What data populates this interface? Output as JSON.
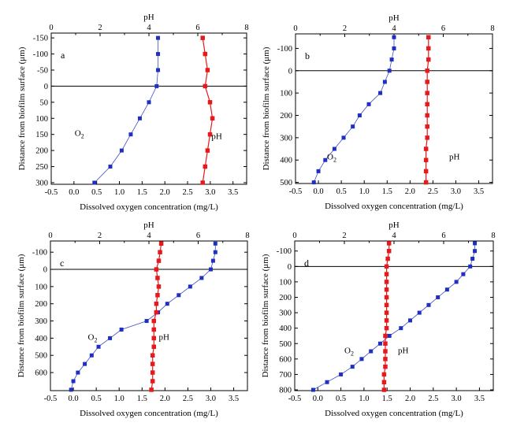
{
  "chart_data": [
    {
      "type": "line",
      "panel": "a",
      "top_axis": {
        "label": "pH",
        "range": [
          0,
          8
        ],
        "ticks": [
          0,
          2,
          4,
          6,
          8
        ],
        "minor_ticks": [
          1,
          3,
          5,
          7
        ]
      },
      "bottom_axis": {
        "label": "Dissolved oxygen concentration (mg/L)",
        "range": [
          -0.5,
          3.8
        ],
        "ticks": [
          -0.5,
          0,
          0.5,
          1,
          1.5,
          2,
          2.5,
          3,
          3.5
        ],
        "tick_labels": [
          "-0.5",
          "0.0",
          "0.5",
          "1.0",
          "1.5",
          "2.0",
          "2.5",
          "3.0",
          "3.5"
        ]
      },
      "y_axis": {
        "label": "Distance from biofilm surface (μm)",
        "range": [
          -165,
          305
        ],
        "ticks": [
          -150,
          -100,
          -50,
          0,
          50,
          100,
          150,
          200,
          250,
          300
        ],
        "reversed": true
      },
      "surface_line": 0,
      "series": [
        {
          "name": "O2",
          "label_text": "O",
          "label_sub": "2",
          "axis": "bottom",
          "color": "#1f2fbf",
          "y": [
            -150,
            -100,
            -50,
            0,
            50,
            100,
            150,
            200,
            250,
            300
          ],
          "x": [
            1.85,
            1.85,
            1.85,
            1.82,
            1.65,
            1.45,
            1.25,
            1.05,
            0.8,
            0.45
          ]
        },
        {
          "name": "pH",
          "label_text": "pH",
          "axis": "top",
          "color": "#e41a1c",
          "y": [
            -150,
            -100,
            -50,
            0,
            50,
            100,
            150,
            200,
            250,
            300
          ],
          "x": [
            6.2,
            6.3,
            6.4,
            6.3,
            6.5,
            6.6,
            6.5,
            6.4,
            6.3,
            6.2
          ]
        }
      ]
    },
    {
      "type": "line",
      "panel": "b",
      "top_axis": {
        "label": "pH",
        "range": [
          0,
          8
        ],
        "ticks": [
          0,
          2,
          4,
          6,
          8
        ],
        "minor_ticks": [
          1,
          3,
          5,
          7
        ]
      },
      "bottom_axis": {
        "label": "Dissolved oxygen concentration (mg/L)",
        "range": [
          -0.5,
          3.8
        ],
        "ticks": [
          -0.5,
          0,
          0.5,
          1,
          1.5,
          2,
          2.5,
          3,
          3.5
        ],
        "tick_labels": [
          "-0.5",
          "0.0",
          "0.5",
          "1.0",
          "1.5",
          "2.0",
          "2.5",
          "3.0",
          "3.5"
        ]
      },
      "y_axis": {
        "label": "Distance from biofilm surface (μm)",
        "range": [
          -165,
          505
        ],
        "ticks": [
          -100,
          0,
          100,
          200,
          300,
          400,
          500
        ],
        "reversed": true
      },
      "surface_line": 0,
      "series": [
        {
          "name": "O2",
          "label_text": "O",
          "label_sub": "2",
          "axis": "bottom",
          "color": "#1f2fbf",
          "y": [
            -150,
            -100,
            -50,
            0,
            50,
            100,
            150,
            200,
            250,
            300,
            350,
            400,
            450,
            500
          ],
          "x": [
            1.65,
            1.65,
            1.6,
            1.55,
            1.45,
            1.35,
            1.1,
            0.9,
            0.75,
            0.55,
            0.35,
            0.15,
            0.0,
            -0.1
          ]
        },
        {
          "name": "pH",
          "label_text": "pH",
          "axis": "top",
          "color": "#e41a1c",
          "y": [
            -150,
            -100,
            -50,
            0,
            50,
            100,
            150,
            200,
            250,
            300,
            350,
            400,
            450,
            500
          ],
          "x": [
            5.4,
            5.4,
            5.4,
            5.35,
            5.35,
            5.35,
            5.35,
            5.35,
            5.35,
            5.35,
            5.3,
            5.3,
            5.3,
            5.3
          ]
        }
      ]
    },
    {
      "type": "line",
      "panel": "c",
      "top_axis": {
        "label": "pH",
        "range": [
          0,
          8
        ],
        "ticks": [
          0,
          2,
          4,
          6,
          8
        ],
        "minor_ticks": [
          1,
          3,
          5,
          7
        ]
      },
      "bottom_axis": {
        "label": "Dissolved oxygen concentration (mg/L)",
        "range": [
          -0.5,
          3.8
        ],
        "ticks": [
          -0.5,
          0,
          0.5,
          1,
          1.5,
          2,
          2.5,
          3,
          3.5
        ],
        "tick_labels": [
          "-0.5",
          "0.0",
          "0.5",
          "1.0",
          "1.5",
          "2.0",
          "2.5",
          "3.0",
          "3.5"
        ]
      },
      "y_axis": {
        "label": "Distance from biofilm surface (μm)",
        "range": [
          -165,
          705
        ],
        "ticks": [
          -100,
          0,
          100,
          200,
          300,
          400,
          500,
          600
        ],
        "reversed": true
      },
      "surface_line": 0,
      "series": [
        {
          "name": "O2",
          "label_text": "O",
          "label_sub": "2",
          "axis": "bottom",
          "color": "#1f2fbf",
          "y": [
            -150,
            -100,
            -50,
            0,
            50,
            100,
            150,
            200,
            250,
            300,
            350,
            400,
            450,
            500,
            550,
            600,
            650,
            700
          ],
          "x": [
            3.1,
            3.1,
            3.05,
            3.0,
            2.8,
            2.55,
            2.3,
            2.05,
            1.85,
            1.6,
            1.05,
            0.8,
            0.55,
            0.4,
            0.25,
            0.1,
            0.0,
            -0.05
          ]
        },
        {
          "name": "pH",
          "label_text": "pH",
          "axis": "top",
          "color": "#e41a1c",
          "y": [
            -150,
            -100,
            -50,
            0,
            50,
            100,
            150,
            200,
            250,
            300,
            350,
            400,
            450,
            500,
            550,
            600,
            650,
            700
          ],
          "x": [
            4.5,
            4.45,
            4.4,
            4.3,
            4.35,
            4.4,
            4.35,
            4.3,
            4.3,
            4.2,
            4.2,
            4.2,
            4.2,
            4.15,
            4.15,
            4.15,
            4.15,
            4.1
          ]
        }
      ]
    },
    {
      "type": "line",
      "panel": "d",
      "top_axis": {
        "label": "pH",
        "range": [
          0,
          8
        ],
        "ticks": [
          0,
          2,
          4,
          6,
          8
        ],
        "minor_ticks": [
          1,
          3,
          5,
          7
        ]
      },
      "bottom_axis": {
        "label": "Dissolved oxygen concentration (mg/L)",
        "range": [
          -0.5,
          3.8
        ],
        "ticks": [
          -0.5,
          0,
          0.5,
          1,
          1.5,
          2,
          2.5,
          3,
          3.5
        ],
        "tick_labels": [
          "-0.5",
          "0.0",
          "0.5",
          "1.0",
          "1.5",
          "2.0",
          "2.5",
          "3.0",
          "3.5"
        ]
      },
      "y_axis": {
        "label": "Distance from biofilm surface (μm)",
        "range": [
          -165,
          805
        ],
        "ticks": [
          -100,
          0,
          100,
          200,
          300,
          400,
          500,
          600,
          700,
          800
        ],
        "reversed": true
      },
      "surface_line": 0,
      "series": [
        {
          "name": "O2",
          "label_text": "O",
          "label_sub": "2",
          "axis": "bottom",
          "color": "#1f2fbf",
          "y": [
            -150,
            -100,
            -50,
            0,
            50,
            100,
            150,
            200,
            250,
            300,
            350,
            400,
            450,
            500,
            550,
            600,
            650,
            700,
            750,
            800
          ],
          "x": [
            3.4,
            3.4,
            3.35,
            3.3,
            3.15,
            3.0,
            2.8,
            2.6,
            2.4,
            2.2,
            2.0,
            1.8,
            1.55,
            1.35,
            1.15,
            0.95,
            0.75,
            0.5,
            0.2,
            -0.1
          ]
        },
        {
          "name": "pH",
          "label_text": "pH",
          "axis": "top",
          "color": "#e41a1c",
          "y": [
            -150,
            -100,
            -50,
            0,
            50,
            100,
            150,
            200,
            250,
            300,
            350,
            400,
            450,
            500,
            550,
            600,
            650,
            700,
            750,
            800
          ],
          "x": [
            3.8,
            3.8,
            3.75,
            3.7,
            3.7,
            3.7,
            3.7,
            3.7,
            3.7,
            3.7,
            3.7,
            3.7,
            3.65,
            3.65,
            3.65,
            3.65,
            3.65,
            3.6,
            3.6,
            3.6
          ]
        }
      ]
    }
  ]
}
